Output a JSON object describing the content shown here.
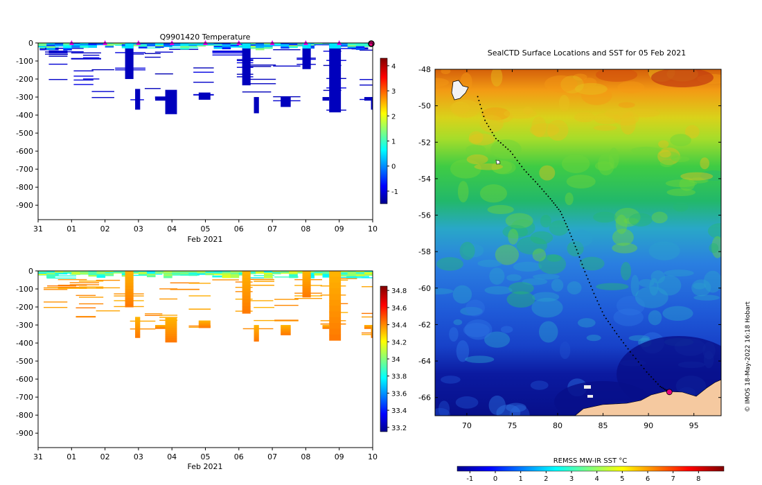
{
  "colors": {
    "frame": "#000000",
    "land": "#f5c9a0",
    "seal_track": "#000000",
    "seal_marker": "#e6007e",
    "day_marker": "#e600e6"
  },
  "chart_data": [
    {
      "type": "heatmap",
      "title": "Q9901420  Temperature",
      "xlabel": "Feb 2021",
      "ylabel": "",
      "x_tick_labels": [
        "31",
        "01",
        "02",
        "03",
        "04",
        "05",
        "06",
        "07",
        "08",
        "09",
        "10"
      ],
      "x_tick_values": [
        0,
        1,
        2,
        3,
        4,
        5,
        6,
        7,
        8,
        9,
        10
      ],
      "xlim": [
        0,
        10
      ],
      "ylim": [
        -980,
        0
      ],
      "y_ticks": [
        0,
        -100,
        -200,
        -300,
        -400,
        -500,
        -600,
        -700,
        -800,
        -900
      ],
      "colorbar": {
        "vmin": -1.5,
        "vmax": 4.3,
        "ticks": [
          4,
          3,
          2,
          1,
          0,
          -1
        ],
        "colormap": "jet"
      },
      "day_markers": [
        1,
        2,
        3,
        4,
        5,
        6,
        7,
        8,
        9
      ],
      "current_time": 10,
      "profiles": [
        {
          "t": 0.1,
          "depth": 20
        },
        {
          "t": 0.3,
          "depth": 35
        },
        {
          "t": 0.5,
          "depth": 200
        },
        {
          "t": 0.55,
          "depth": 90
        },
        {
          "t": 0.9,
          "depth": 100
        },
        {
          "t": 1.3,
          "depth": 180
        },
        {
          "t": 1.4,
          "depth": 230
        },
        {
          "t": 1.5,
          "depth": 280
        },
        {
          "t": 1.9,
          "depth": 300
        },
        {
          "t": 2.65,
          "depth": 200
        },
        {
          "t": 2.95,
          "depth": 370
        },
        {
          "t": 3.35,
          "depth": 310
        },
        {
          "t": 3.8,
          "depth": 395
        },
        {
          "t": 4.3,
          "depth": 105
        },
        {
          "t": 4.9,
          "depth": 310
        },
        {
          "t": 5.6,
          "depth": 75
        },
        {
          "t": 6.2,
          "depth": 230
        },
        {
          "t": 6.5,
          "depth": 390
        },
        {
          "t": 6.7,
          "depth": 295
        },
        {
          "t": 7.4,
          "depth": 350
        },
        {
          "t": 8.0,
          "depth": 150
        },
        {
          "t": 8.7,
          "depth": 300
        },
        {
          "t": 8.9,
          "depth": 385
        },
        {
          "t": 9.3,
          "depth": 40
        },
        {
          "t": 9.6,
          "depth": 35
        },
        {
          "t": 9.9,
          "depth": 370
        }
      ],
      "blocks": [
        {
          "t0": 2.6,
          "t1": 2.85,
          "d0": 0,
          "d1": 200
        },
        {
          "t0": 2.9,
          "t1": 3.05,
          "d0": 255,
          "d1": 370
        },
        {
          "t0": 3.5,
          "t1": 3.8,
          "d0": 300,
          "d1": 320
        },
        {
          "t0": 3.8,
          "t1": 4.15,
          "d0": 260,
          "d1": 395
        },
        {
          "t0": 4.8,
          "t1": 5.15,
          "d0": 275,
          "d1": 315
        },
        {
          "t0": 6.1,
          "t1": 6.35,
          "d0": 0,
          "d1": 235
        },
        {
          "t0": 6.45,
          "t1": 6.6,
          "d0": 300,
          "d1": 390
        },
        {
          "t0": 7.25,
          "t1": 7.55,
          "d0": 300,
          "d1": 355
        },
        {
          "t0": 7.9,
          "t1": 8.15,
          "d0": 0,
          "d1": 145
        },
        {
          "t0": 8.5,
          "t1": 8.7,
          "d0": 300,
          "d1": 320
        },
        {
          "t0": 8.7,
          "t1": 9.05,
          "d0": 0,
          "d1": 385
        },
        {
          "t0": 9.75,
          "t1": 10.0,
          "d0": 300,
          "d1": 320
        },
        {
          "t0": 9.95,
          "t1": 10.0,
          "d0": 300,
          "d1": 370
        }
      ]
    },
    {
      "type": "heatmap",
      "title": "",
      "xlabel": "Feb 2021",
      "ylabel": "",
      "x_tick_labels": [
        "31",
        "01",
        "02",
        "03",
        "04",
        "05",
        "06",
        "07",
        "08",
        "09",
        "10"
      ],
      "x_tick_values": [
        0,
        1,
        2,
        3,
        4,
        5,
        6,
        7,
        8,
        9,
        10
      ],
      "xlim": [
        0,
        10
      ],
      "ylim": [
        -980,
        0
      ],
      "y_ticks": [
        0,
        -100,
        -200,
        -300,
        -400,
        -500,
        -600,
        -700,
        -800,
        -900
      ],
      "colorbar": {
        "vmin": 33.15,
        "vmax": 34.85,
        "ticks": [
          34.8,
          34.6,
          34.4,
          34.2,
          34,
          33.8,
          33.6,
          33.4,
          33.2
        ],
        "colormap": "jet"
      }
    },
    {
      "type": "heatmap",
      "title": "SealCTD Surface Locations and SST for 05 Feb 2021",
      "xlabel": "",
      "ylabel": "",
      "xlim": [
        66.5,
        98
      ],
      "ylim": [
        -67,
        -48
      ],
      "x_ticks": [
        70,
        75,
        80,
        85,
        90,
        95
      ],
      "y_ticks": [
        -48,
        -50,
        -52,
        -54,
        -56,
        -58,
        -60,
        -62,
        -64,
        -66
      ],
      "colorbar": {
        "label": "REMSS MW-IR SST °C",
        "vmin": -1.5,
        "vmax": 9,
        "ticks": [
          -1,
          0,
          1,
          2,
          3,
          4,
          5,
          6,
          7,
          8
        ],
        "colormap": "jet"
      },
      "track": [
        [
          71.2,
          -49.5
        ],
        [
          72.0,
          -50.8
        ],
        [
          73.2,
          -51.8
        ],
        [
          74.8,
          -52.5
        ],
        [
          76.3,
          -53.5
        ],
        [
          77.8,
          -54.3
        ],
        [
          79.2,
          -55.1
        ],
        [
          80.3,
          -55.8
        ],
        [
          81.2,
          -56.8
        ],
        [
          82.1,
          -57.9
        ],
        [
          83.0,
          -59.1
        ],
        [
          84.0,
          -60.3
        ],
        [
          85.1,
          -61.5
        ],
        [
          86.5,
          -62.5
        ],
        [
          88.0,
          -63.5
        ],
        [
          89.8,
          -64.6
        ],
        [
          91.3,
          -65.4
        ],
        [
          92.3,
          -65.7
        ]
      ],
      "seal_position": [
        92.3,
        -65.7
      ],
      "credit": "© IMOS 18-May-2022 16:18 Hobart"
    }
  ]
}
